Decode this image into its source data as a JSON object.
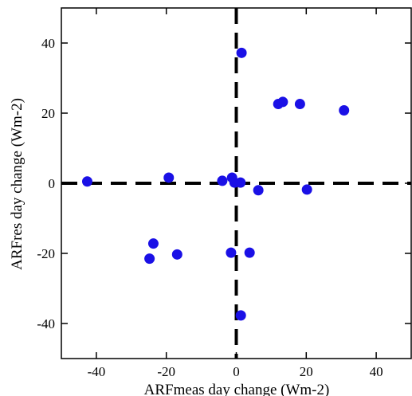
{
  "chart_data": {
    "type": "scatter",
    "xlabel": "ARFmeas day change (Wm-2)",
    "ylabel": "ARFres day change (Wm-2)",
    "xlim": [
      -50,
      50
    ],
    "ylim": [
      -50,
      50
    ],
    "xticks": [
      -40,
      -20,
      0,
      20,
      40
    ],
    "yticks": [
      -40,
      -20,
      0,
      20,
      40
    ],
    "grid": false,
    "marker_color": "#1a10e6",
    "reference_lines": [
      {
        "axis": "x",
        "value": 0,
        "style": "dashed"
      },
      {
        "axis": "y",
        "value": 0,
        "style": "dashed"
      }
    ],
    "series": [
      {
        "points": [
          {
            "x": 1.5,
            "y": 37.2
          },
          {
            "x": 12.0,
            "y": 22.6
          },
          {
            "x": 13.3,
            "y": 23.2
          },
          {
            "x": 18.2,
            "y": 22.6
          },
          {
            "x": 30.8,
            "y": 20.8
          },
          {
            "x": -42.6,
            "y": 0.5
          },
          {
            "x": -19.3,
            "y": 1.6
          },
          {
            "x": -4.0,
            "y": 0.7
          },
          {
            "x": -1.2,
            "y": 1.6
          },
          {
            "x": -0.5,
            "y": 0.2
          },
          {
            "x": 1.2,
            "y": 0.2
          },
          {
            "x": 6.3,
            "y": -2.0
          },
          {
            "x": 20.2,
            "y": -1.8
          },
          {
            "x": -23.7,
            "y": -17.2
          },
          {
            "x": -24.8,
            "y": -21.5
          },
          {
            "x": -16.9,
            "y": -20.3
          },
          {
            "x": -1.5,
            "y": -19.8
          },
          {
            "x": 3.8,
            "y": -19.8
          },
          {
            "x": 1.3,
            "y": -37.7
          }
        ]
      }
    ]
  }
}
